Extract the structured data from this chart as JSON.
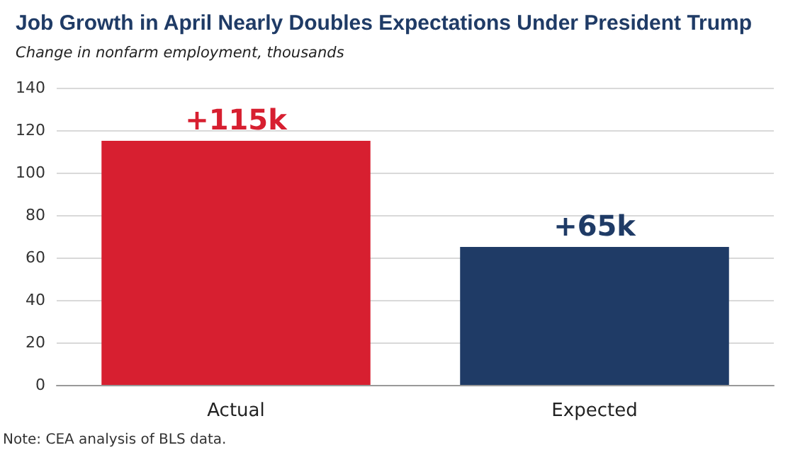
{
  "chart_data": {
    "type": "bar",
    "title": "Job Growth in April Nearly Doubles Expectations Under President Trump",
    "subtitle": "Change in nonfarm employment, thousands",
    "categories": [
      "Actual",
      "Expected"
    ],
    "values": [
      115,
      65
    ],
    "colors": [
      "#d71f30",
      "#1f3b66"
    ],
    "value_labels": [
      "+115k",
      "+65k"
    ],
    "ylim": [
      0,
      140
    ],
    "yticks": [
      0,
      20,
      40,
      60,
      80,
      100,
      120,
      140
    ],
    "grid": "y",
    "annotations": [
      "Note: CEA analysis of BLS data."
    ]
  }
}
